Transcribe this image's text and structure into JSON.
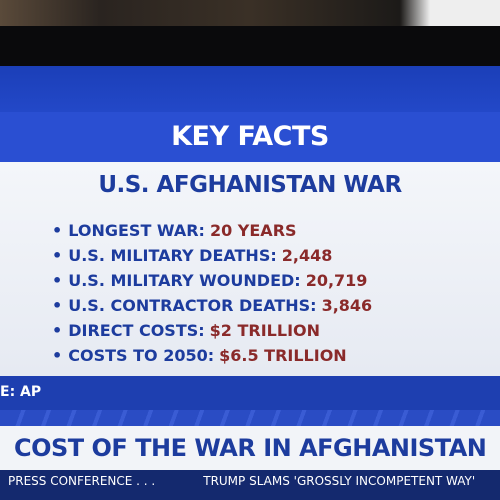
{
  "header": {
    "title": "KEY FACTS"
  },
  "panel": {
    "title": "U.S. AFGHANISTAN WAR",
    "facts": [
      {
        "label": "LONGEST WAR:",
        "value": "20 YEARS"
      },
      {
        "label": "U.S. MILITARY DEATHS:",
        "value": "2,448"
      },
      {
        "label": "U.S. MILITARY WOUNDED:",
        "value": "20,719"
      },
      {
        "label": "U.S. CONTRACTOR DEATHS:",
        "value": "3,846"
      },
      {
        "label": "DIRECT COSTS:",
        "value": "$2 TRILLION"
      },
      {
        "label": "COSTS TO 2050:",
        "value": "$6.5 TRILLION"
      }
    ]
  },
  "source": "E: AP",
  "banner": {
    "headline": "COST OF THE WAR IN AFGHANISTAN"
  },
  "ticker": [
    "PRESS CONFERENCE . . .",
    "TRUMP SLAMS 'GROSSLY INCOMPETENT WAY'"
  ]
}
